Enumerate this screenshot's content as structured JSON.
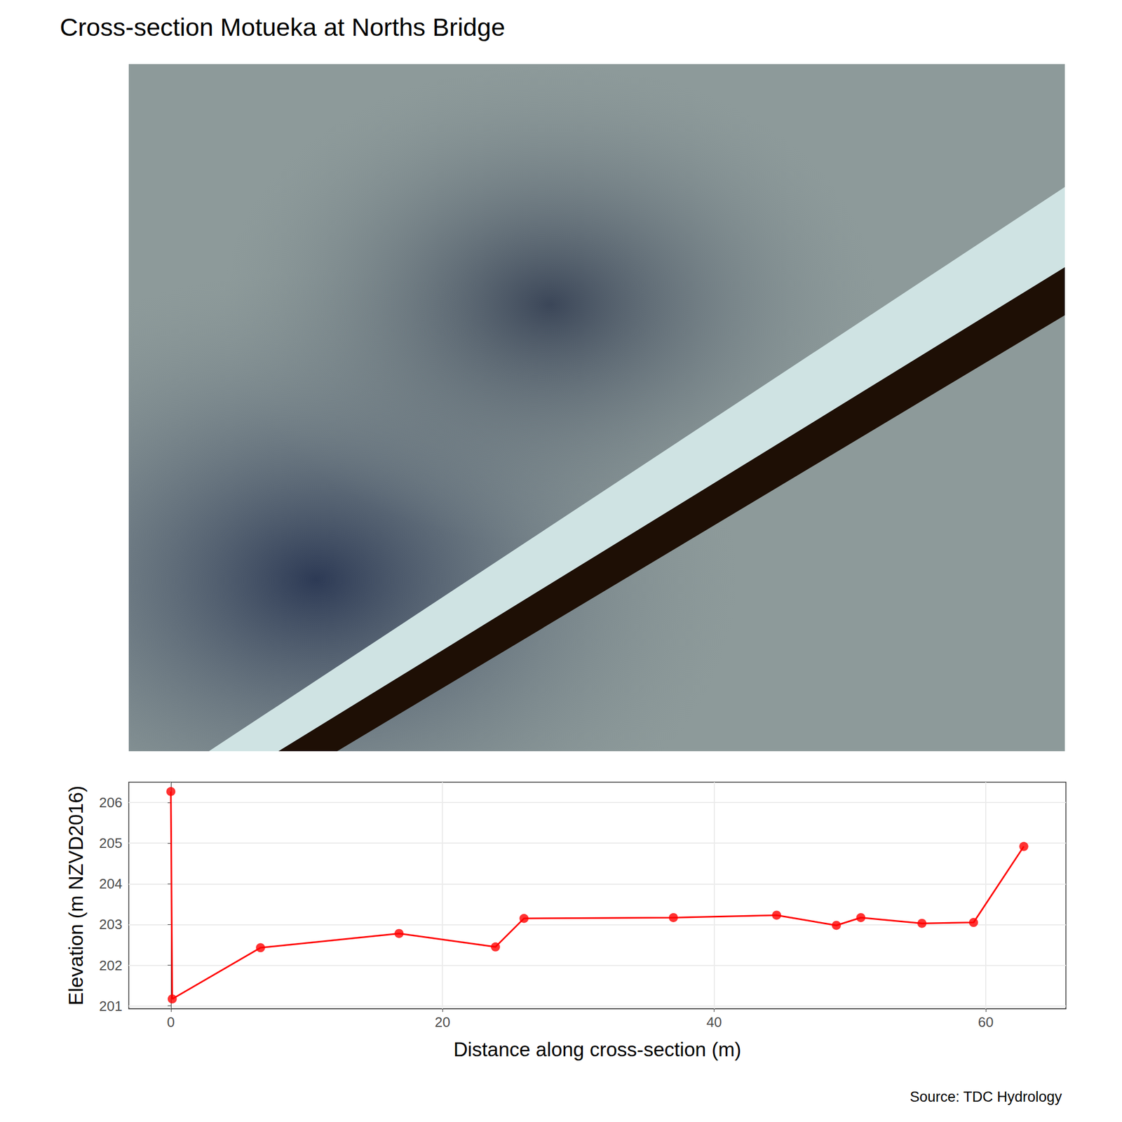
{
  "chart_data": {
    "type": "line",
    "title": "Cross-section Motueka at Norths Bridge",
    "x_label": "Distance along cross-section (m)",
    "y_label": "Elevation (m NZVD2016)",
    "caption": "Source: TDC Hydrology",
    "x": [
      0,
      0.1,
      6.6,
      16.8,
      23.9,
      26.0,
      37.0,
      44.6,
      49.0,
      50.8,
      55.3,
      59.1,
      62.8
    ],
    "values": [
      206.27,
      201.17,
      202.43,
      202.78,
      202.45,
      203.15,
      203.17,
      203.23,
      202.98,
      203.17,
      203.03,
      203.05,
      204.92
    ],
    "color": "#ff0000",
    "marker": "circle",
    "xlim": [
      -3.1,
      65.9
    ],
    "ylim": [
      200.93,
      206.5
    ],
    "xticks": [
      0,
      20,
      40,
      60
    ],
    "yticks": [
      201,
      202,
      203,
      204,
      205,
      206
    ],
    "grid": true
  }
}
